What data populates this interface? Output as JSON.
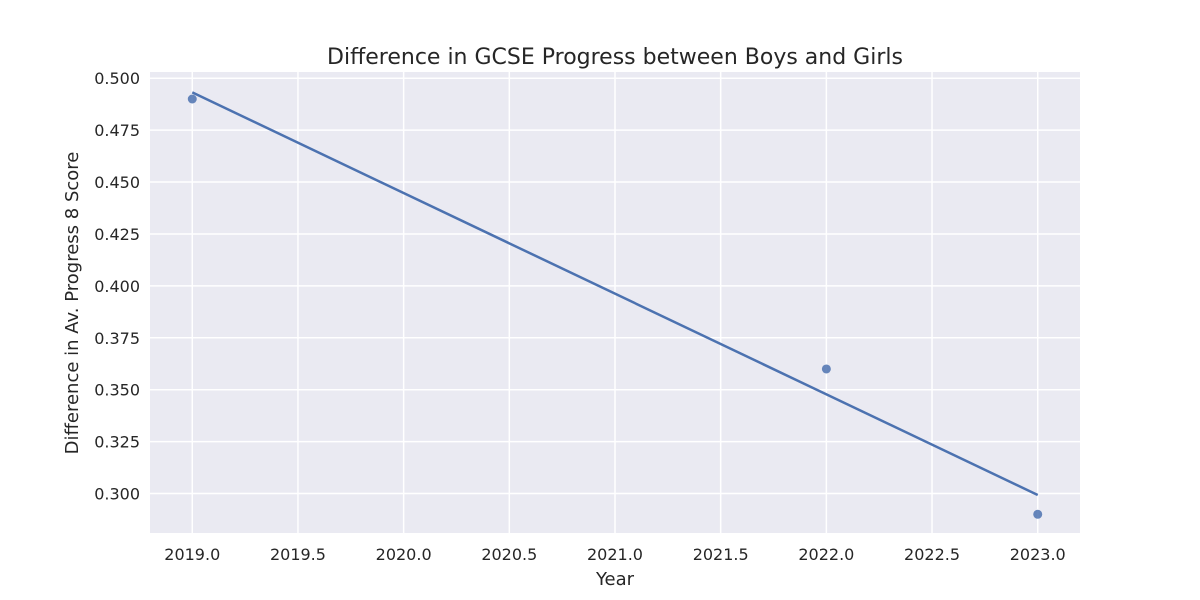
{
  "chart_data": {
    "type": "scatter",
    "title": "Difference in GCSE Progress between Boys and Girls",
    "xlabel": "Year",
    "ylabel": "Difference in Av. Progress 8 Score",
    "xlim": [
      2018.8,
      2023.2
    ],
    "ylim": [
      0.281,
      0.503
    ],
    "x_ticks": [
      2019.0,
      2019.5,
      2020.0,
      2020.5,
      2021.0,
      2021.5,
      2022.0,
      2022.5,
      2023.0
    ],
    "x_tick_labels": [
      "2019.0",
      "2019.5",
      "2020.0",
      "2020.5",
      "2021.0",
      "2021.5",
      "2022.0",
      "2022.5",
      "2023.0"
    ],
    "y_ticks": [
      0.3,
      0.325,
      0.35,
      0.375,
      0.4,
      0.425,
      0.45,
      0.475,
      0.5
    ],
    "y_tick_labels": [
      "0.300",
      "0.325",
      "0.350",
      "0.375",
      "0.400",
      "0.425",
      "0.450",
      "0.475",
      "0.500"
    ],
    "points": [
      {
        "x": 2019,
        "y": 0.49
      },
      {
        "x": 2022,
        "y": 0.36
      },
      {
        "x": 2023,
        "y": 0.29
      }
    ],
    "trend_line": [
      {
        "x": 2019,
        "y": 0.4932
      },
      {
        "x": 2023,
        "y": 0.2993
      }
    ],
    "grid": true,
    "colors": {
      "background": "#eaeaf2",
      "grid": "#ffffff",
      "series": "#4c72b0"
    }
  }
}
